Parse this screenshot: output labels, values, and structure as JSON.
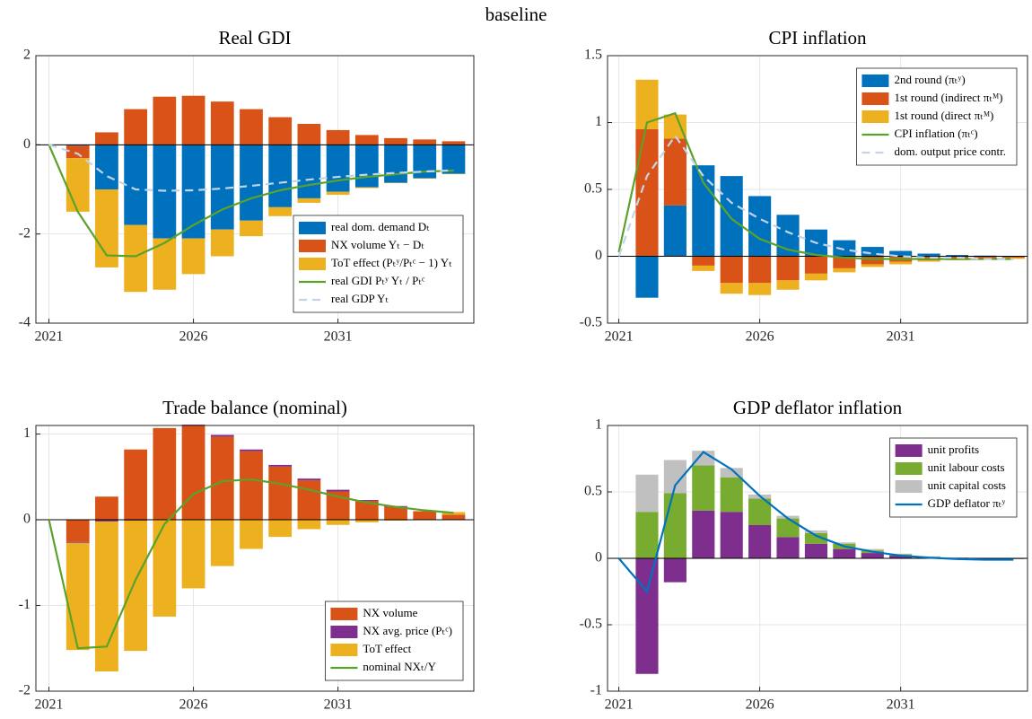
{
  "title": "baseline",
  "chart_data": [
    {
      "type": "bar",
      "title": "Real GDI",
      "legend": "lower right",
      "grid": true,
      "x": [
        2021,
        2022,
        2023,
        2024,
        2025,
        2026,
        2027,
        2028,
        2029,
        2030,
        2031,
        2032,
        2033,
        2034,
        2035
      ],
      "xlim": [
        2020.55,
        2035.7
      ],
      "xticks": [
        2021,
        2026,
        2031
      ],
      "ylim": [
        -4,
        2
      ],
      "yticks": [
        -4,
        -2,
        0,
        2
      ],
      "series": [
        {
          "name": "real dom. demand Dₜ",
          "type": "bar",
          "color": "#0072BD",
          "values": [
            null,
            -0.02,
            -1.0,
            -1.8,
            -2.1,
            -2.1,
            -1.9,
            -1.7,
            -1.4,
            -1.2,
            -1.05,
            -0.95,
            -0.85,
            -0.75,
            -0.65
          ]
        },
        {
          "name": "NX volume Yₜ − Dₜ",
          "type": "bar",
          "color": "#D95319",
          "values": [
            null,
            -0.28,
            0.28,
            0.8,
            1.08,
            1.1,
            0.97,
            0.8,
            0.62,
            0.47,
            0.33,
            0.22,
            0.15,
            0.12,
            0.08
          ]
        },
        {
          "name": "ToT effect (Pₜʸ/Pₜᶜ − 1) Yₜ",
          "type": "bar",
          "color": "#EDB120",
          "values": [
            null,
            -1.2,
            -1.75,
            -1.5,
            -1.15,
            -0.8,
            -0.6,
            -0.35,
            -0.2,
            -0.1,
            -0.07,
            -0.02,
            -0.01,
            -0.01,
            -0.01
          ]
        },
        {
          "name": "real GDI Pₜʸ Yₜ / Pₜᶜ",
          "type": "line",
          "color": "#5ba22b",
          "values": [
            0,
            -1.5,
            -2.48,
            -2.5,
            -2.2,
            -1.8,
            -1.45,
            -1.2,
            -1.02,
            -0.9,
            -0.8,
            -0.72,
            -0.66,
            -0.6,
            -0.58
          ]
        },
        {
          "name": "real GDP Yₜ",
          "type": "line",
          "dashed": true,
          "color": "#c3d4e8",
          "values": [
            0,
            -0.2,
            -0.7,
            -1.0,
            -1.03,
            -1.02,
            -0.98,
            -0.92,
            -0.85,
            -0.78,
            -0.72,
            -0.67,
            -0.63,
            -0.6,
            -0.57
          ]
        }
      ]
    },
    {
      "type": "bar",
      "title": "CPI inflation",
      "legend": "upper right",
      "grid": true,
      "x": [
        2021,
        2022,
        2023,
        2024,
        2025,
        2026,
        2027,
        2028,
        2029,
        2030,
        2031,
        2032,
        2033,
        2034,
        2035
      ],
      "xlim": [
        2020.6,
        2035.5
      ],
      "xticks": [
        2021,
        2026,
        2031
      ],
      "ylim": [
        -0.5,
        1.5
      ],
      "yticks": [
        -0.5,
        0,
        0.5,
        1,
        1.5
      ],
      "series": [
        {
          "name": "2nd round (πₜʸ)",
          "type": "bar",
          "color": "#0072BD",
          "values": [
            null,
            -0.31,
            0.38,
            0.68,
            0.6,
            0.45,
            0.31,
            0.2,
            0.12,
            0.07,
            0.04,
            0.02,
            0.01,
            0.005,
            0.003
          ]
        },
        {
          "name": "1st round (indirect πₜᴹ)",
          "type": "bar",
          "color": "#D95319",
          "values": [
            null,
            0.95,
            0.5,
            -0.07,
            -0.2,
            -0.2,
            -0.18,
            -0.13,
            -0.09,
            -0.06,
            -0.04,
            -0.03,
            -0.02,
            -0.015,
            -0.01
          ]
        },
        {
          "name": "1st round (direct πₜᴹ)",
          "type": "bar",
          "color": "#EDB120",
          "values": [
            null,
            0.37,
            0.18,
            -0.04,
            -0.08,
            -0.09,
            -0.07,
            -0.05,
            -0.03,
            -0.02,
            -0.02,
            -0.01,
            -0.01,
            -0.01,
            -0.01
          ]
        },
        {
          "name": "CPI inflation (πₜᶜ)",
          "type": "line",
          "color": "#5ba22b",
          "values": [
            0.03,
            1.0,
            1.07,
            0.55,
            0.28,
            0.13,
            0.05,
            0.01,
            -0.01,
            -0.02,
            -0.02,
            -0.02,
            -0.02,
            -0.02,
            -0.02
          ]
        },
        {
          "name": "dom. output price contr.",
          "type": "line",
          "dashed": true,
          "color": "#c3d4e8",
          "values": [
            0,
            0.6,
            0.9,
            0.6,
            0.4,
            0.28,
            0.18,
            0.1,
            0.05,
            0.02,
            0.0,
            -0.01,
            -0.01,
            -0.02,
            -0.02
          ]
        }
      ]
    },
    {
      "type": "bar",
      "title": "Trade balance (nominal)",
      "legend": "lower right",
      "grid": true,
      "x": [
        2021,
        2022,
        2023,
        2024,
        2025,
        2026,
        2027,
        2028,
        2029,
        2030,
        2031,
        2032,
        2033,
        2034,
        2035
      ],
      "xlim": [
        2020.55,
        2035.7
      ],
      "xticks": [
        2021,
        2026,
        2031
      ],
      "ylim": [
        -2,
        1.1
      ],
      "yticks": [
        -2,
        -1,
        0,
        1
      ],
      "series": [
        {
          "name": "NX volume",
          "type": "bar",
          "color": "#D95319",
          "values": [
            null,
            -0.26,
            0.27,
            0.82,
            1.07,
            1.1,
            0.97,
            0.8,
            0.62,
            0.46,
            0.33,
            0.22,
            0.15,
            0.1,
            0.06
          ]
        },
        {
          "name": "NX avg. price (Pₜᶜ)",
          "type": "bar",
          "color": "#7E2F8E",
          "values": [
            null,
            -0.01,
            -0.02,
            -0.01,
            0.0,
            0.01,
            0.02,
            0.02,
            0.02,
            0.02,
            0.02,
            0.01,
            0.01,
            0.0,
            0.0
          ]
        },
        {
          "name": "ToT effect",
          "type": "bar",
          "color": "#EDB120",
          "values": [
            null,
            -1.25,
            -1.75,
            -1.52,
            -1.13,
            -0.8,
            -0.54,
            -0.34,
            -0.2,
            -0.11,
            -0.06,
            -0.03,
            -0.01,
            0.0,
            0.03
          ]
        },
        {
          "name": "nominal NXₜ/Y",
          "type": "line",
          "color": "#5ba22b",
          "values": [
            0,
            -1.5,
            -1.48,
            -0.7,
            -0.05,
            0.3,
            0.45,
            0.47,
            0.42,
            0.35,
            0.27,
            0.2,
            0.15,
            0.11,
            0.08
          ]
        }
      ]
    },
    {
      "type": "bar",
      "title": "GDP deflator inflation",
      "legend": "upper right",
      "grid": true,
      "x": [
        2021,
        2022,
        2023,
        2024,
        2025,
        2026,
        2027,
        2028,
        2029,
        2030,
        2031,
        2032,
        2033,
        2034,
        2035
      ],
      "xlim": [
        2020.6,
        2035.5
      ],
      "xticks": [
        2021,
        2026,
        2031
      ],
      "ylim": [
        -1,
        1
      ],
      "yticks": [
        -1,
        -0.5,
        0,
        0.5,
        1
      ],
      "series": [
        {
          "name": "unit profits",
          "type": "bar",
          "color": "#7E2F8E",
          "values": [
            null,
            -0.87,
            -0.18,
            0.36,
            0.35,
            0.25,
            0.16,
            0.11,
            0.07,
            0.04,
            0.02,
            0.01,
            0.005,
            0.0,
            -0.005
          ]
        },
        {
          "name": "unit labour costs",
          "type": "bar",
          "color": "#77AC30",
          "values": [
            null,
            0.35,
            0.49,
            0.34,
            0.26,
            0.2,
            0.14,
            0.08,
            0.04,
            0.02,
            0.01,
            0.0,
            0.0,
            0.0,
            0.0
          ]
        },
        {
          "name": "unit capital costs",
          "type": "bar",
          "color": "#C0C0C0",
          "values": [
            null,
            0.28,
            0.25,
            0.11,
            0.07,
            0.03,
            0.02,
            0.02,
            0.01,
            0.01,
            0.005,
            0.005,
            0.0,
            0.003,
            0.0
          ]
        },
        {
          "name": "GDP deflator πₜʸ",
          "type": "line",
          "color": "#0072BD",
          "values": [
            0,
            -0.25,
            0.55,
            0.8,
            0.67,
            0.47,
            0.3,
            0.17,
            0.09,
            0.05,
            0.02,
            0.005,
            -0.005,
            -0.01,
            -0.01
          ]
        }
      ]
    }
  ]
}
